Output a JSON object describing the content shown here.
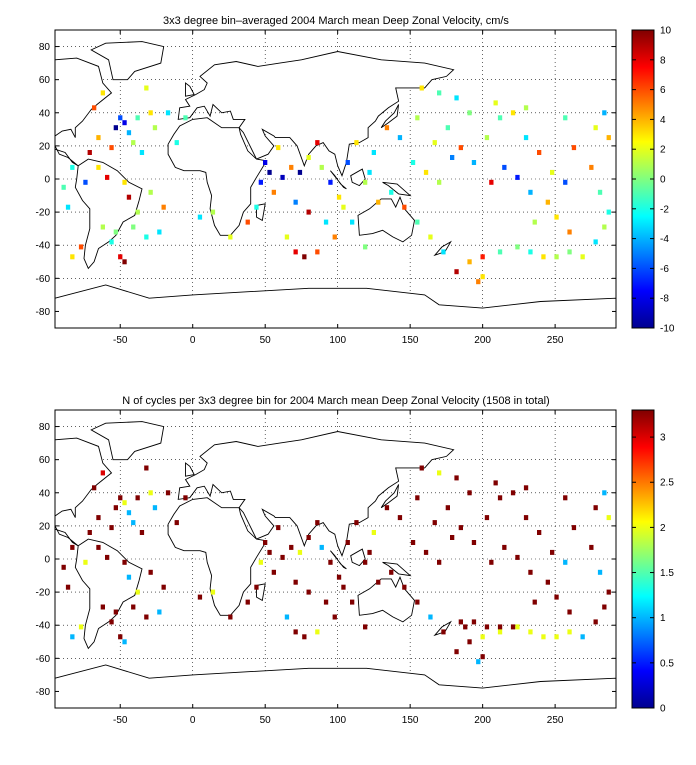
{
  "chart_data": [
    {
      "type": "heatmap",
      "title": "3x3 degree bin–averaged 2004 March mean Deep Zonal Velocity, cm/s",
      "xlim": [
        -95,
        292
      ],
      "ylim": [
        -90,
        90
      ],
      "xticks": [
        -50,
        0,
        50,
        100,
        150,
        200,
        250
      ],
      "yticks": [
        80,
        60,
        40,
        20,
        0,
        -20,
        -40,
        -60,
        -80
      ],
      "grid": true,
      "colorbar": {
        "position": "right",
        "colormap": "jet",
        "range": [
          -10,
          10
        ],
        "ticks": [
          10,
          8,
          6,
          4,
          2,
          0,
          -2,
          -4,
          -6,
          -8,
          -10
        ]
      },
      "bin_size_deg": 3,
      "cells_lon_lat_value": [
        [
          -62,
          52,
          3
        ],
        [
          -68,
          43,
          6
        ],
        [
          -50,
          37,
          -6
        ],
        [
          -47,
          34,
          -8
        ],
        [
          -53,
          31,
          -10
        ],
        [
          -44,
          28,
          -4
        ],
        [
          -38,
          37,
          -1
        ],
        [
          -29,
          40,
          3
        ],
        [
          -41,
          22,
          1
        ],
        [
          -56,
          19,
          6
        ],
        [
          -65,
          25,
          4
        ],
        [
          -71,
          16,
          9
        ],
        [
          -35,
          16,
          -3
        ],
        [
          -26,
          31,
          1
        ],
        [
          -17,
          40,
          -3
        ],
        [
          -11,
          22,
          -2
        ],
        [
          -59,
          1,
          8
        ],
        [
          -47,
          -2,
          3
        ],
        [
          -44,
          -11,
          9
        ],
        [
          -29,
          -8,
          1
        ],
        [
          -20,
          -17,
          5
        ],
        [
          -38,
          -20,
          1
        ],
        [
          -53,
          -32,
          0
        ],
        [
          -41,
          -29,
          0
        ],
        [
          -32,
          -35,
          -2
        ],
        [
          -23,
          -32,
          -3
        ],
        [
          -77,
          -41,
          6
        ],
        [
          -83,
          -47,
          3
        ],
        [
          -50,
          -47,
          8
        ],
        [
          -47,
          -50,
          10
        ],
        [
          -83,
          7,
          -2
        ],
        [
          -89,
          -5,
          -1
        ],
        [
          -86,
          -17,
          -3
        ],
        [
          5,
          -23,
          -3
        ],
        [
          14,
          -20,
          1
        ],
        [
          26,
          -35,
          2
        ],
        [
          47,
          -2,
          -7
        ],
        [
          53,
          4,
          -10
        ],
        [
          56,
          -8,
          5
        ],
        [
          50,
          10,
          -8
        ],
        [
          59,
          19,
          3
        ],
        [
          62,
          1,
          -9
        ],
        [
          68,
          7,
          5
        ],
        [
          74,
          4,
          -10
        ],
        [
          80,
          13,
          2
        ],
        [
          86,
          22,
          8
        ],
        [
          89,
          7,
          1
        ],
        [
          95,
          -2,
          -7
        ],
        [
          71,
          -14,
          -5
        ],
        [
          80,
          -20,
          9
        ],
        [
          92,
          -26,
          -3
        ],
        [
          65,
          -35,
          2
        ],
        [
          71,
          -44,
          8
        ],
        [
          77,
          -47,
          10
        ],
        [
          86,
          -44,
          6
        ],
        [
          98,
          -35,
          5
        ],
        [
          104,
          -17,
          2
        ],
        [
          110,
          -26,
          -3
        ],
        [
          119,
          -41,
          0
        ],
        [
          113,
          22,
          3
        ],
        [
          125,
          16,
          -3
        ],
        [
          134,
          31,
          5
        ],
        [
          143,
          25,
          -4
        ],
        [
          155,
          37,
          1
        ],
        [
          152,
          10,
          -2
        ],
        [
          161,
          4,
          3
        ],
        [
          170,
          -2,
          1
        ],
        [
          179,
          13,
          -5
        ],
        [
          167,
          22,
          2
        ],
        [
          176,
          31,
          -1
        ],
        [
          185,
          19,
          6
        ],
        [
          194,
          10,
          -4
        ],
        [
          203,
          25,
          1
        ],
        [
          212,
          37,
          -1
        ],
        [
          221,
          40,
          3
        ],
        [
          230,
          25,
          -3
        ],
        [
          239,
          16,
          6
        ],
        [
          248,
          4,
          2
        ],
        [
          257,
          -2,
          -6
        ],
        [
          245,
          -14,
          4
        ],
        [
          236,
          -26,
          1
        ],
        [
          224,
          -41,
          0
        ],
        [
          212,
          -44,
          -1
        ],
        [
          200,
          -47,
          7
        ],
        [
          191,
          -50,
          4
        ],
        [
          182,
          -56,
          9
        ],
        [
          173,
          -44,
          -3
        ],
        [
          164,
          -35,
          2
        ],
        [
          155,
          -26,
          -1
        ],
        [
          146,
          -17,
          6
        ],
        [
          137,
          -8,
          -2
        ],
        [
          128,
          -14,
          4
        ],
        [
          200,
          -59,
          3
        ],
        [
          197,
          -62,
          5
        ],
        [
          233,
          -44,
          -2
        ],
        [
          242,
          -47,
          3
        ],
        [
          251,
          -47,
          1
        ],
        [
          260,
          -44,
          0
        ],
        [
          269,
          -47,
          2
        ],
        [
          278,
          -38,
          -3
        ],
        [
          284,
          -29,
          1
        ],
        [
          287,
          -20,
          -2
        ],
        [
          281,
          -8,
          -1
        ],
        [
          275,
          7,
          5
        ],
        [
          263,
          19,
          6
        ],
        [
          278,
          31,
          2
        ],
        [
          284,
          40,
          -4
        ],
        [
          287,
          25,
          4
        ],
        [
          170,
          52,
          -1
        ],
        [
          182,
          49,
          -3
        ],
        [
          209,
          46,
          2
        ],
        [
          191,
          40,
          0
        ],
        [
          230,
          43,
          1
        ],
        [
          257,
          37,
          -1
        ],
        [
          158,
          55,
          3
        ],
        [
          -32,
          55,
          2
        ],
        [
          -5,
          37,
          -1
        ],
        [
          -65,
          7,
          3
        ],
        [
          -74,
          -2,
          -6
        ],
        [
          -56,
          -38,
          -2
        ],
        [
          -62,
          -29,
          1
        ],
        [
          206,
          -2,
          8
        ],
        [
          215,
          7,
          -6
        ],
        [
          224,
          1,
          -7
        ],
        [
          233,
          -8,
          -4
        ],
        [
          251,
          -23,
          3
        ],
        [
          260,
          -32,
          5
        ],
        [
          122,
          4,
          -3
        ],
        [
          119,
          -2,
          1
        ],
        [
          107,
          10,
          -6
        ],
        [
          101,
          -11,
          3
        ],
        [
          44,
          -17,
          -2
        ],
        [
          38,
          -26,
          6
        ]
      ]
    },
    {
      "type": "heatmap",
      "title": "N of cycles per 3x3 degree bin for 2004 March mean Deep Zonal Velocity (1508 in total)",
      "xlim": [
        -95,
        292
      ],
      "ylim": [
        -90,
        90
      ],
      "xticks": [
        -50,
        0,
        50,
        100,
        150,
        200,
        250
      ],
      "yticks": [
        80,
        60,
        40,
        20,
        0,
        -20,
        -40,
        -60,
        -80
      ],
      "grid": true,
      "colorbar": {
        "position": "right",
        "colormap": "jet",
        "range": [
          0,
          3.3
        ],
        "ticks": [
          3,
          2.5,
          2,
          1.5,
          1,
          0.5,
          0
        ]
      },
      "bin_size_deg": 3,
      "cells_lon_lat_value": [
        [
          -62,
          52,
          3
        ],
        [
          -68,
          43,
          3.3
        ],
        [
          -50,
          37,
          3.3
        ],
        [
          -47,
          34,
          2
        ],
        [
          -53,
          31,
          3.3
        ],
        [
          -44,
          28,
          1
        ],
        [
          -38,
          37,
          3.3
        ],
        [
          -29,
          40,
          2
        ],
        [
          -41,
          22,
          1
        ],
        [
          -56,
          19,
          3.3
        ],
        [
          -65,
          25,
          3.3
        ],
        [
          -71,
          16,
          3.3
        ],
        [
          -35,
          16,
          3.3
        ],
        [
          -26,
          31,
          1
        ],
        [
          -17,
          40,
          3.3
        ],
        [
          -11,
          22,
          3.3
        ],
        [
          -59,
          1,
          3.3
        ],
        [
          -47,
          -2,
          3.3
        ],
        [
          -44,
          -11,
          1
        ],
        [
          -29,
          -8,
          3.3
        ],
        [
          -20,
          -17,
          3.3
        ],
        [
          -38,
          -20,
          2
        ],
        [
          -53,
          -32,
          3.3
        ],
        [
          -41,
          -29,
          3.3
        ],
        [
          -32,
          -35,
          3.3
        ],
        [
          -23,
          -32,
          1
        ],
        [
          -77,
          -41,
          2
        ],
        [
          -83,
          -47,
          1
        ],
        [
          -50,
          -47,
          3.3
        ],
        [
          -47,
          -50,
          1
        ],
        [
          -83,
          7,
          3.3
        ],
        [
          -89,
          -5,
          3.3
        ],
        [
          -86,
          -17,
          3.3
        ],
        [
          5,
          -23,
          3.3
        ],
        [
          14,
          -20,
          2
        ],
        [
          26,
          -35,
          3.3
        ],
        [
          47,
          -2,
          2
        ],
        [
          53,
          4,
          3.3
        ],
        [
          56,
          -8,
          3.3
        ],
        [
          50,
          10,
          3.3
        ],
        [
          59,
          19,
          3.3
        ],
        [
          62,
          1,
          3.3
        ],
        [
          68,
          7,
          3.3
        ],
        [
          74,
          4,
          2
        ],
        [
          80,
          13,
          3.3
        ],
        [
          86,
          22,
          3.3
        ],
        [
          89,
          7,
          1
        ],
        [
          95,
          -2,
          3.3
        ],
        [
          71,
          -14,
          3.3
        ],
        [
          80,
          -20,
          3.3
        ],
        [
          92,
          -26,
          3.3
        ],
        [
          65,
          -35,
          1
        ],
        [
          71,
          -44,
          3.3
        ],
        [
          77,
          -47,
          3.3
        ],
        [
          86,
          -44,
          2
        ],
        [
          98,
          -35,
          3.3
        ],
        [
          104,
          -17,
          3.3
        ],
        [
          110,
          -26,
          3.3
        ],
        [
          119,
          -41,
          3.3
        ],
        [
          113,
          22,
          3.3
        ],
        [
          125,
          16,
          2
        ],
        [
          134,
          31,
          3.3
        ],
        [
          143,
          25,
          3.3
        ],
        [
          155,
          37,
          3.3
        ],
        [
          152,
          10,
          3.3
        ],
        [
          161,
          4,
          3.3
        ],
        [
          170,
          -2,
          3.3
        ],
        [
          179,
          13,
          3.3
        ],
        [
          167,
          22,
          3.3
        ],
        [
          176,
          31,
          3.3
        ],
        [
          185,
          19,
          3.3
        ],
        [
          194,
          10,
          3.3
        ],
        [
          203,
          25,
          3.3
        ],
        [
          212,
          37,
          3.3
        ],
        [
          221,
          40,
          3.3
        ],
        [
          230,
          25,
          3.3
        ],
        [
          239,
          16,
          3.3
        ],
        [
          248,
          4,
          3.3
        ],
        [
          257,
          -2,
          1
        ],
        [
          245,
          -14,
          3.3
        ],
        [
          236,
          -26,
          3.3
        ],
        [
          224,
          -41,
          2
        ],
        [
          212,
          -44,
          2
        ],
        [
          200,
          -47,
          2
        ],
        [
          191,
          -50,
          3.3
        ],
        [
          182,
          -56,
          3.3
        ],
        [
          173,
          -44,
          3.3
        ],
        [
          164,
          -35,
          1
        ],
        [
          155,
          -26,
          3.3
        ],
        [
          146,
          -17,
          3.3
        ],
        [
          137,
          -8,
          3.3
        ],
        [
          128,
          -14,
          3.3
        ],
        [
          200,
          -59,
          3.3
        ],
        [
          197,
          -62,
          1
        ],
        [
          233,
          -44,
          2
        ],
        [
          242,
          -47,
          2
        ],
        [
          251,
          -47,
          2
        ],
        [
          260,
          -44,
          2
        ],
        [
          269,
          -47,
          1
        ],
        [
          278,
          -38,
          3.3
        ],
        [
          284,
          -29,
          3.3
        ],
        [
          287,
          -20,
          3.3
        ],
        [
          281,
          -8,
          1
        ],
        [
          275,
          7,
          3.3
        ],
        [
          263,
          19,
          3.3
        ],
        [
          278,
          31,
          3.3
        ],
        [
          284,
          40,
          1
        ],
        [
          287,
          25,
          2
        ],
        [
          170,
          52,
          2
        ],
        [
          182,
          49,
          3.3
        ],
        [
          209,
          46,
          3.3
        ],
        [
          191,
          40,
          3.3
        ],
        [
          230,
          43,
          3.3
        ],
        [
          257,
          37,
          3.3
        ],
        [
          158,
          55,
          3.3
        ],
        [
          -32,
          55,
          3.3
        ],
        [
          -5,
          37,
          3.3
        ],
        [
          -65,
          7,
          3.3
        ],
        [
          -74,
          -2,
          2
        ],
        [
          -56,
          -38,
          3.3
        ],
        [
          -62,
          -29,
          3.3
        ],
        [
          206,
          -2,
          3.3
        ],
        [
          215,
          7,
          3.3
        ],
        [
          224,
          1,
          3.3
        ],
        [
          233,
          -8,
          3.3
        ],
        [
          251,
          -23,
          3.3
        ],
        [
          260,
          -32,
          3.3
        ],
        [
          122,
          4,
          3.3
        ],
        [
          119,
          -2,
          3.3
        ],
        [
          107,
          10,
          3.3
        ],
        [
          101,
          -11,
          3.3
        ],
        [
          44,
          -17,
          3.3
        ],
        [
          38,
          -26,
          3.3
        ],
        [
          185,
          -38,
          3.3
        ],
        [
          188,
          -41,
          3.3
        ],
        [
          194,
          -38,
          3.3
        ],
        [
          203,
          -41,
          3.3
        ],
        [
          212,
          -41,
          3.3
        ],
        [
          221,
          -41,
          3.3
        ]
      ]
    }
  ]
}
